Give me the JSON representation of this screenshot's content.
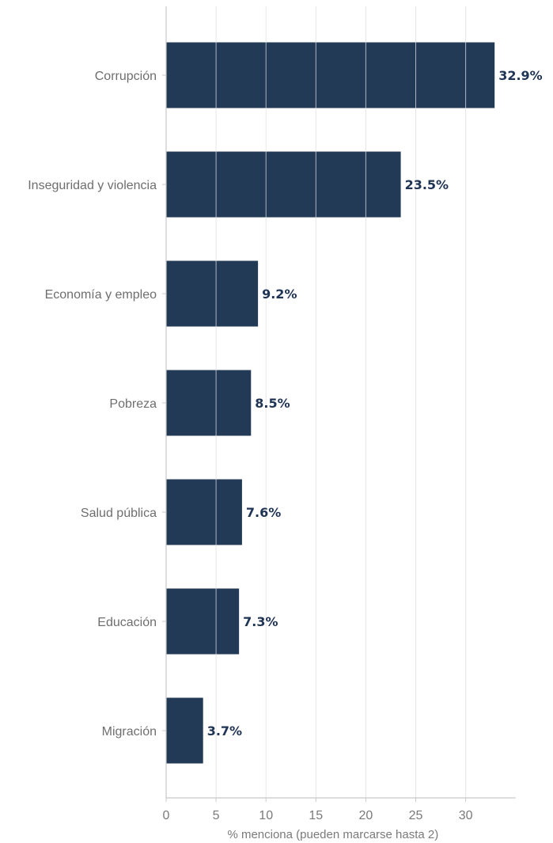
{
  "chart_data": {
    "type": "bar",
    "orientation": "horizontal",
    "categories": [
      "Corrupción",
      "Inseguridad y violencia",
      "Economía y empleo",
      "Pobreza",
      "Salud pública",
      "Educación",
      "Migración"
    ],
    "values": [
      32.9,
      23.5,
      9.2,
      8.5,
      7.6,
      7.3,
      3.7
    ],
    "data_labels": [
      "32.9%",
      "23.5%",
      "9.2%",
      "8.5%",
      "7.6%",
      "7.3%",
      "3.7%"
    ],
    "title": "",
    "xlabel": "% menciona (pueden marcarse hasta 2)",
    "ylabel": "",
    "xlim": [
      0,
      35
    ],
    "xticks": [
      0,
      5,
      10,
      15,
      20,
      25,
      30
    ],
    "grid": "vertical",
    "legend": "none",
    "colors": {
      "bar": "#233a57",
      "label": "#1f3354",
      "grid": "#e6e6e6",
      "axis": "#c8c8c8",
      "text": "#6e6e6e"
    }
  }
}
